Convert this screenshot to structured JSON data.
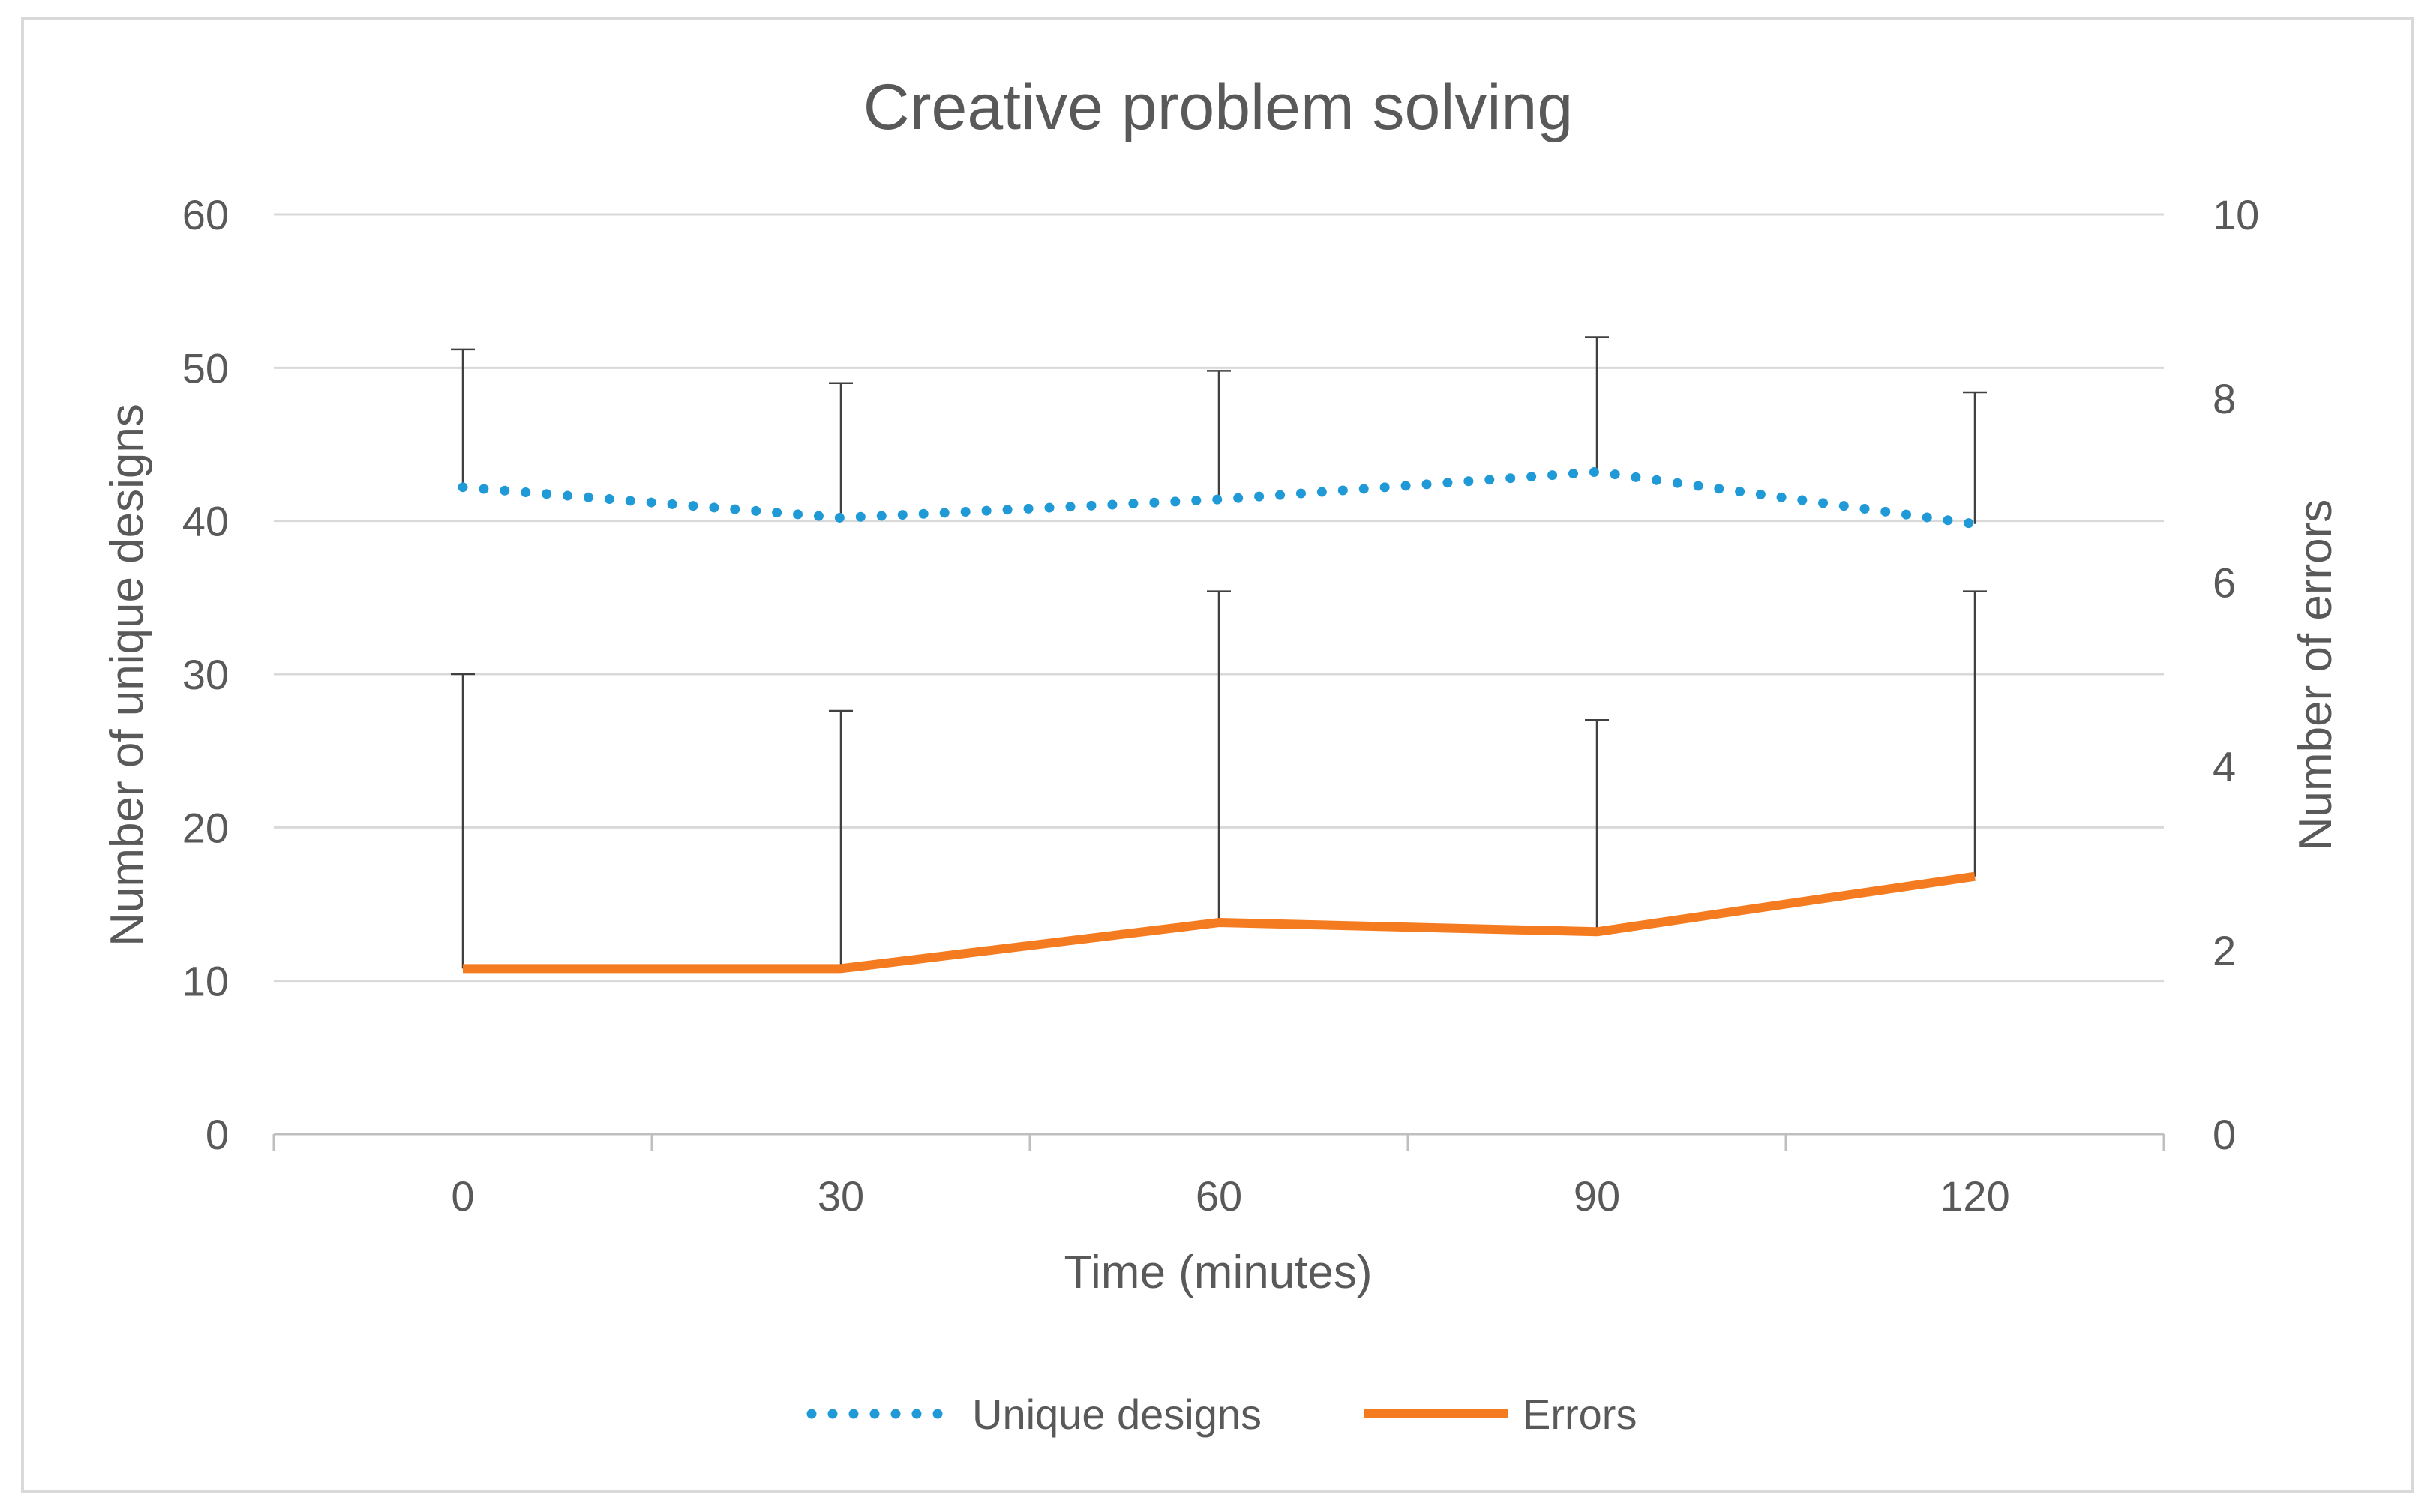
{
  "chart_data": {
    "type": "line",
    "title": "Creative problem solving",
    "xlabel": "Time (minutes)",
    "ylabel": "Number of unique designs",
    "y2label": "Number of errors",
    "categories": [
      "0",
      "30",
      "60",
      "90",
      "120"
    ],
    "ylim": [
      0,
      60
    ],
    "y2lim": [
      0,
      10
    ],
    "yticks": [
      "0",
      "10",
      "20",
      "30",
      "40",
      "50",
      "60"
    ],
    "y2ticks": [
      "0",
      "2",
      "4",
      "6",
      "8",
      "10"
    ],
    "grid": true,
    "legend_position": "bottom",
    "series": [
      {
        "name": "Unique designs",
        "axis": "left",
        "style": "dotted",
        "color": "#1f9ad6",
        "values": [
          42.2,
          40.2,
          41.4,
          43.2,
          39.8
        ],
        "error_upper": [
          51.2,
          49.0,
          49.8,
          52.0,
          48.4
        ]
      },
      {
        "name": "Errors",
        "axis": "right",
        "style": "solid",
        "color": "#f47b20",
        "values": [
          1.8,
          1.8,
          2.3,
          2.2,
          2.8
        ],
        "error_upper": [
          5.0,
          4.6,
          5.9,
          4.5,
          5.9
        ]
      }
    ]
  }
}
